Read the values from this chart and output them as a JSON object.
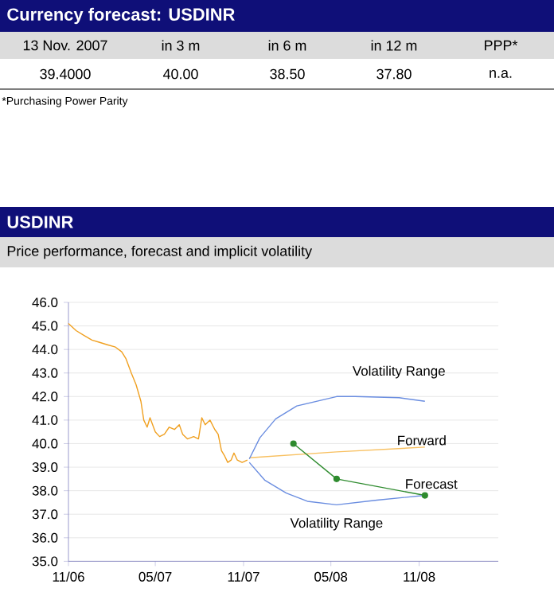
{
  "chart_data": [
    {
      "type": "other",
      "title": "Currency forecast: USDINR",
      "categories": [
        "13 Nov. 2007",
        "in 3 m",
        "in 6 m",
        "in 12 m",
        "PPP*"
      ],
      "value_labels": [
        "39.4000",
        "40.00",
        "38.50",
        "37.80",
        "n.a."
      ],
      "annotations": [
        "*Purchasing Power Parity"
      ]
    },
    {
      "type": "line",
      "title": "USDINR",
      "subtitle": "Price performance, forecast and implicit volatility",
      "xlim": [
        "2006-11",
        "2009-04-15"
      ],
      "ylim": [
        35,
        46
      ],
      "xticks": [
        {
          "value": "2006-11",
          "label": "11/06"
        },
        {
          "value": "2007-05",
          "label": "05/07"
        },
        {
          "value": "2007-11",
          "label": "11/07"
        },
        {
          "value": "2008-05",
          "label": "05/08"
        },
        {
          "value": "2008-11",
          "label": "11/08"
        }
      ],
      "yticks": [
        {
          "value": 35,
          "label": "35.0"
        },
        {
          "value": 36,
          "label": "36.0"
        },
        {
          "value": 37,
          "label": "37.0"
        },
        {
          "value": 38,
          "label": "38.0"
        },
        {
          "value": 39,
          "label": "39.0"
        },
        {
          "value": 40,
          "label": "40.0"
        },
        {
          "value": 41,
          "label": "41.0"
        },
        {
          "value": 42,
          "label": "42.0"
        },
        {
          "value": 43,
          "label": "43.0"
        },
        {
          "value": 44,
          "label": "44.0"
        },
        {
          "value": 45,
          "label": "45.0"
        },
        {
          "value": 46,
          "label": "46.0"
        }
      ],
      "grid": "y",
      "marker": "none",
      "line_style": "solid",
      "series": [
        {
          "color": "#f0a020",
          "x": [
            "2006-11-01",
            "2006-11-17",
            "2006-12-03",
            "2006-12-20",
            "2007-01-05",
            "2007-01-21",
            "2007-02-07",
            "2007-02-20",
            "2007-03-01",
            "2007-03-12",
            "2007-03-22",
            "2007-04-01",
            "2007-04-07",
            "2007-04-14",
            "2007-04-20",
            "2007-05-01",
            "2007-05-10",
            "2007-05-20",
            "2007-05-30",
            "2007-06-10",
            "2007-06-20",
            "2007-06-27",
            "2007-07-07",
            "2007-07-20",
            "2007-07-30",
            "2007-08-06",
            "2007-08-13",
            "2007-08-23",
            "2007-09-02",
            "2007-09-09",
            "2007-09-16",
            "2007-09-22",
            "2007-09-29",
            "2007-10-06",
            "2007-10-12",
            "2007-10-19",
            "2007-10-29",
            "2007-11-09"
          ],
          "values": [
            45.1,
            44.8,
            44.6,
            44.4,
            44.3,
            44.2,
            44.1,
            43.9,
            43.6,
            43.0,
            42.5,
            41.8,
            41.0,
            40.7,
            41.1,
            40.5,
            40.3,
            40.4,
            40.7,
            40.6,
            40.8,
            40.4,
            40.2,
            40.3,
            40.2,
            41.1,
            40.8,
            41.0,
            40.6,
            40.4,
            39.7,
            39.5,
            39.2,
            39.3,
            39.6,
            39.3,
            39.2,
            39.3
          ]
        },
        {
          "name": "Forward",
          "color": "#f8c060",
          "x": [
            "2007-11-13",
            "2008-05-13",
            "2008-11-13"
          ],
          "values": [
            39.4,
            39.65,
            39.85
          ]
        },
        {
          "name": "Forecast",
          "color": "#2e8b2e",
          "marker": "circle",
          "x": [
            "2008-02-13",
            "2008-05-13",
            "2008-11-13"
          ],
          "values": [
            40.0,
            38.5,
            37.8
          ]
        },
        {
          "name": "Volatility Range",
          "color": "#6a8de0",
          "x": [
            "2007-11-13",
            "2007-12-05",
            "2008-01-07",
            "2008-02-20",
            "2008-05-13",
            "2008-06-20",
            "2008-09-20",
            "2008-11-13"
          ],
          "values": [
            39.35,
            40.25,
            41.05,
            41.6,
            42.0,
            42.0,
            41.95,
            41.8
          ]
        },
        {
          "name": "Volatility Range",
          "color": "#6a8de0",
          "x": [
            "2007-11-13",
            "2007-12-15",
            "2008-01-29",
            "2008-03-13",
            "2008-05-13",
            "2008-08-05",
            "2008-11-13"
          ],
          "values": [
            39.2,
            38.45,
            37.9,
            37.55,
            37.4,
            37.6,
            37.8
          ]
        }
      ]
    }
  ]
}
